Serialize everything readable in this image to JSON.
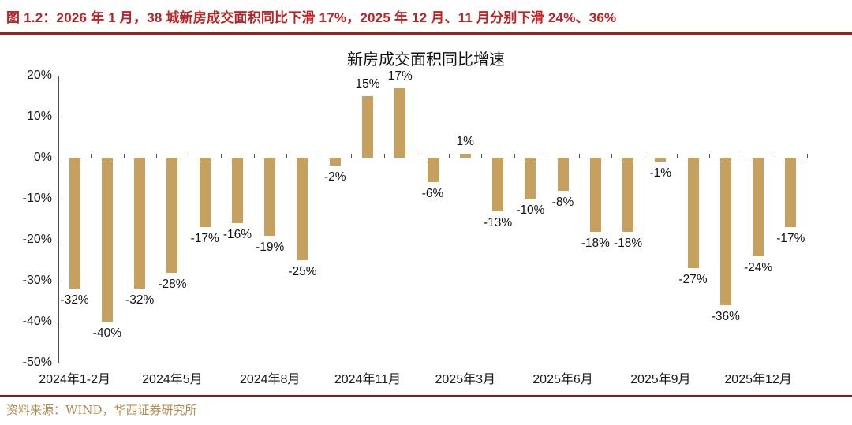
{
  "figure_caption": "图 1.2：2026 年 1 月，38 城新房成交面积同比下滑 17%，2025 年 12 月、11 月分别下滑 24%、36%",
  "source_note": "资料来源：WIND，华西证券研究所",
  "colors": {
    "bar": "#C6A05E",
    "caption_red": "#BE2323",
    "rule_red": "#9E1E1E",
    "source_gold": "#B48C50",
    "axis_gray": "#4d4d4d",
    "label_black": "#111111"
  },
  "chart_data": {
    "type": "bar",
    "title": "新房成交面积同比增速",
    "xlabel": "",
    "ylabel": "",
    "ylim": [
      -50,
      20
    ],
    "grid": false,
    "legend": "none",
    "y_ticks": [
      {
        "v": 20,
        "label": "20%"
      },
      {
        "v": 10,
        "label": "10%"
      },
      {
        "v": 0,
        "label": "0%"
      },
      {
        "v": -10,
        "label": "-10%"
      },
      {
        "v": -20,
        "label": "-20%"
      },
      {
        "v": -30,
        "label": "-30%"
      },
      {
        "v": -40,
        "label": "-40%"
      },
      {
        "v": -50,
        "label": "-50%"
      }
    ],
    "points": [
      {
        "v": -32,
        "label": "-32%"
      },
      {
        "v": -40,
        "label": "-40%"
      },
      {
        "v": -32,
        "label": "-32%"
      },
      {
        "v": -28,
        "label": "-28%"
      },
      {
        "v": -17,
        "label": "-17%"
      },
      {
        "v": -16,
        "label": "-16%"
      },
      {
        "v": -19,
        "label": "-19%"
      },
      {
        "v": -25,
        "label": "-25%"
      },
      {
        "v": -2,
        "label": "-2%"
      },
      {
        "v": 15,
        "label": "15%"
      },
      {
        "v": 17,
        "label": "17%"
      },
      {
        "v": -6,
        "label": "-6%"
      },
      {
        "v": 1,
        "label": "1%"
      },
      {
        "v": -13,
        "label": "-13%"
      },
      {
        "v": -10,
        "label": "-10%"
      },
      {
        "v": -8,
        "label": "-8%"
      },
      {
        "v": -18,
        "label": "-18%"
      },
      {
        "v": -18,
        "label": "-18%"
      },
      {
        "v": -1,
        "label": "-1%"
      },
      {
        "v": -27,
        "label": "-27%"
      },
      {
        "v": -36,
        "label": "-36%"
      },
      {
        "v": -24,
        "label": "-24%"
      },
      {
        "v": -17,
        "label": "-17%"
      }
    ],
    "x_tick_labels": [
      {
        "index": 0,
        "label": "2024年1-2月"
      },
      {
        "index": 3,
        "label": "2024年5月"
      },
      {
        "index": 6,
        "label": "2024年8月"
      },
      {
        "index": 9,
        "label": "2024年11月"
      },
      {
        "index": 12,
        "label": "2025年3月"
      },
      {
        "index": 15,
        "label": "2025年6月"
      },
      {
        "index": 18,
        "label": "2025年9月"
      },
      {
        "index": 21,
        "label": "2025年12月"
      }
    ]
  }
}
